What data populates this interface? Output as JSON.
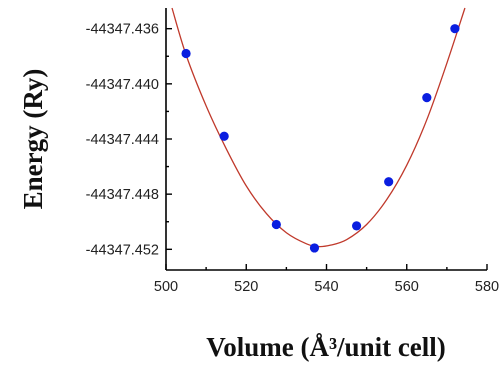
{
  "chart_data": {
    "type": "scatter",
    "xlabel": "Volume (Å³/unit cell)",
    "ylabel": "Energy (Ry)",
    "xlim": [
      500,
      580
    ],
    "ylim": [
      -44347.4535,
      -44347.4345
    ],
    "xticks": [
      500,
      520,
      540,
      560,
      580
    ],
    "xtick_labels": [
      "500",
      "520",
      "540",
      "560",
      "580"
    ],
    "yticks": [
      -44347.436,
      -44347.44,
      -44347.444,
      -44347.448,
      -44347.452
    ],
    "ytick_labels": [
      "-44347.436",
      "-44347.440",
      "-44347.444",
      "-44347.448",
      "-44347.452"
    ],
    "grid": false,
    "series": [
      {
        "kind": "points",
        "color": "#0a1ee0",
        "x": [
          505,
          514.5,
          527.5,
          537,
          547.5,
          555.5,
          565,
          572
        ],
        "y": [
          -44347.4378,
          -44347.4438,
          -44347.4502,
          -44347.4519,
          -44347.4503,
          -44347.4471,
          -44347.441,
          -44347.436
        ]
      },
      {
        "kind": "fit-curve",
        "color": "#c0392b",
        "x": [
          501.5,
          505,
          510,
          515,
          520,
          525,
          530,
          535,
          538,
          541,
          545,
          550,
          555,
          560,
          565,
          570,
          574.5
        ],
        "y": [
          -44347.4345,
          -44347.4379,
          -44347.4416,
          -44347.4447,
          -44347.4474,
          -44347.4494,
          -44347.4508,
          -44347.4516,
          -44347.4518,
          -44347.4517,
          -44347.4513,
          -44347.4502,
          -44347.4484,
          -44347.4459,
          -44347.4426,
          -44347.4385,
          -44347.4345
        ]
      }
    ]
  }
}
